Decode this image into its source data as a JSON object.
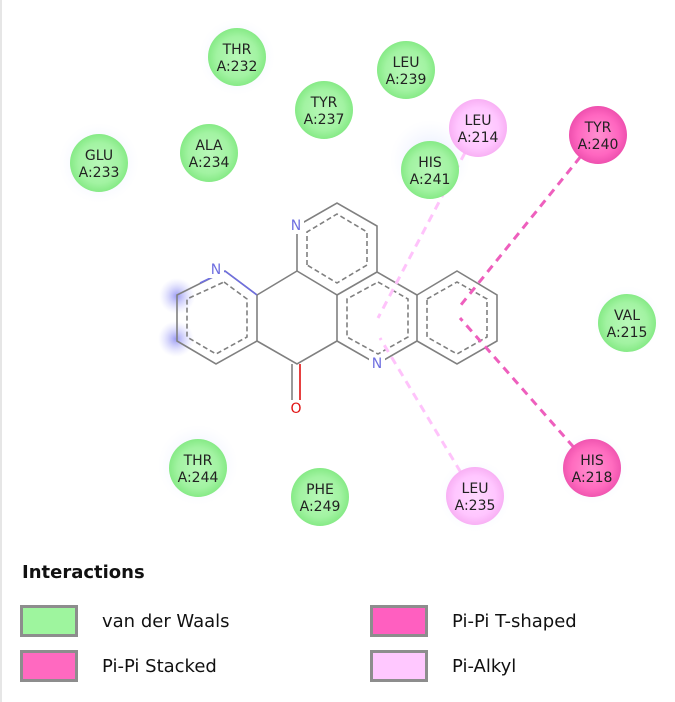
{
  "colors": {
    "vdw": "#9ef59e",
    "pi_pi_stacked": "#ff69c0",
    "pi_pi_tshaped": "#ff5fc0",
    "pi_alkyl": "#ffc8ff",
    "bond": "#808080",
    "nitrogen": "#6f6fe0",
    "oxygen": "#e01010"
  },
  "residues": [
    {
      "id": "thr232",
      "name": "THR",
      "chain_id": "A:232",
      "type": "vdw"
    },
    {
      "id": "leu239",
      "name": "LEU",
      "chain_id": "A:239",
      "type": "vdw"
    },
    {
      "id": "tyr237",
      "name": "TYR",
      "chain_id": "A:237",
      "type": "vdw"
    },
    {
      "id": "leu214",
      "name": "LEU",
      "chain_id": "A:214",
      "type": "pi_alkyl"
    },
    {
      "id": "tyr240",
      "name": "TYR",
      "chain_id": "A:240",
      "type": "pi_pi_tshaped"
    },
    {
      "id": "glu233",
      "name": "GLU",
      "chain_id": "A:233",
      "type": "vdw"
    },
    {
      "id": "ala234",
      "name": "ALA",
      "chain_id": "A:234",
      "type": "vdw"
    },
    {
      "id": "his241",
      "name": "HIS",
      "chain_id": "A:241",
      "type": "vdw"
    },
    {
      "id": "val215",
      "name": "VAL",
      "chain_id": "A:215",
      "type": "vdw"
    },
    {
      "id": "his218",
      "name": "HIS",
      "chain_id": "A:218",
      "type": "pi_pi_stacked"
    },
    {
      "id": "thr244",
      "name": "THR",
      "chain_id": "A:244",
      "type": "vdw"
    },
    {
      "id": "phe249",
      "name": "PHE",
      "chain_id": "A:249",
      "type": "vdw"
    },
    {
      "id": "leu235",
      "name": "LEU",
      "chain_id": "A:235",
      "type": "pi_alkyl"
    }
  ],
  "atoms": {
    "nitrogen": "N",
    "oxygen": "O"
  },
  "legend": {
    "title": "Interactions",
    "items": [
      {
        "key": "vdw",
        "label": "van der Waals"
      },
      {
        "key": "pi_pi_tshaped",
        "label": "Pi-Pi T-shaped"
      },
      {
        "key": "pi_pi_stacked",
        "label": "Pi-Pi Stacked"
      },
      {
        "key": "pi_alkyl",
        "label": "Pi-Alkyl"
      }
    ]
  }
}
